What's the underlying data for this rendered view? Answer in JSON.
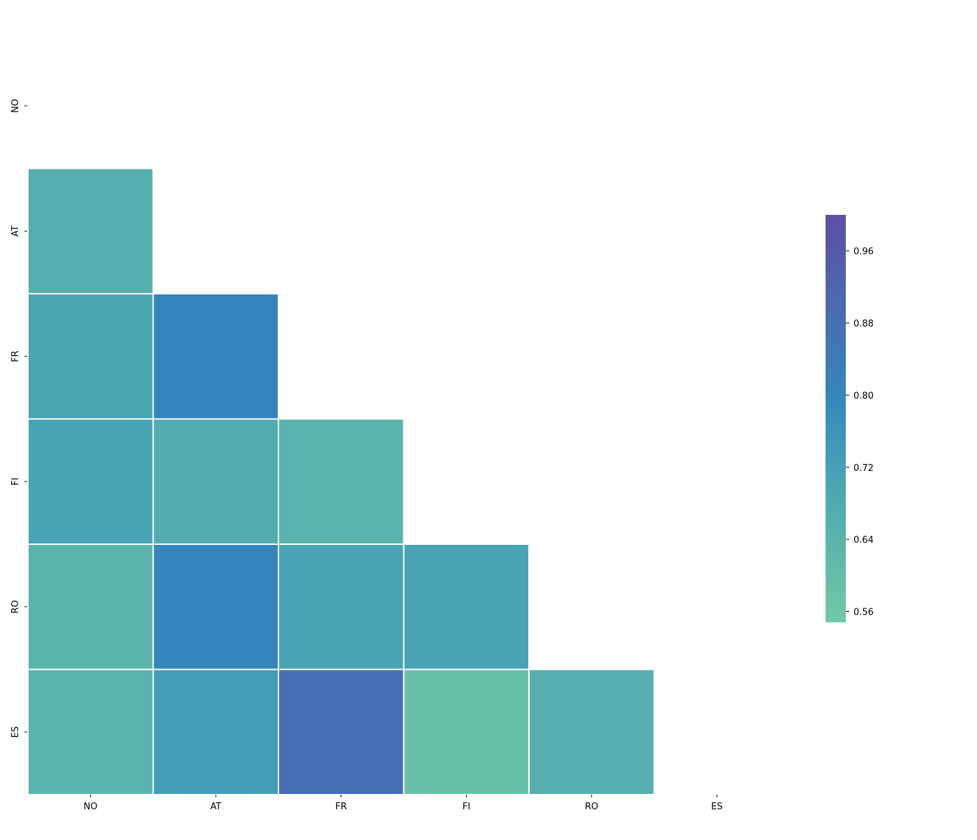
{
  "chart_data": {
    "type": "heatmap",
    "title": "",
    "xlabel": "",
    "ylabel": "",
    "x_labels": [
      "NO",
      "AT",
      "FR",
      "FI",
      "RO",
      "ES"
    ],
    "y_labels": [
      "NO",
      "AT",
      "FR",
      "FI",
      "RO",
      "ES"
    ],
    "mask": "lower-triangle-only",
    "cells": [
      {
        "row": "AT",
        "col": "NO",
        "value": 0.66
      },
      {
        "row": "FR",
        "col": "NO",
        "value": 0.7
      },
      {
        "row": "FR",
        "col": "AT",
        "value": 0.8
      },
      {
        "row": "FI",
        "col": "NO",
        "value": 0.71
      },
      {
        "row": "FI",
        "col": "AT",
        "value": 0.67
      },
      {
        "row": "FI",
        "col": "FR",
        "value": 0.645
      },
      {
        "row": "RO",
        "col": "NO",
        "value": 0.64
      },
      {
        "row": "RO",
        "col": "AT",
        "value": 0.8
      },
      {
        "row": "RO",
        "col": "FR",
        "value": 0.705
      },
      {
        "row": "RO",
        "col": "FI",
        "value": 0.71
      },
      {
        "row": "ES",
        "col": "NO",
        "value": 0.645
      },
      {
        "row": "ES",
        "col": "AT",
        "value": 0.73
      },
      {
        "row": "ES",
        "col": "FR",
        "value": 0.88
      },
      {
        "row": "ES",
        "col": "FI",
        "value": 0.58
      },
      {
        "row": "ES",
        "col": "RO",
        "value": 0.66
      }
    ],
    "colorbar": {
      "min": 0.548,
      "max": 1.0,
      "ticks": [
        "0.56",
        "0.64",
        "0.72",
        "0.80",
        "0.88",
        "0.96"
      ],
      "color_stops": [
        {
          "v": 0.548,
          "color": "#72c8a7"
        },
        {
          "v": 0.64,
          "color": "#5bb4ab"
        },
        {
          "v": 0.72,
          "color": "#46a0b6"
        },
        {
          "v": 0.8,
          "color": "#3585bc"
        },
        {
          "v": 0.88,
          "color": "#4670b4"
        },
        {
          "v": 1.0,
          "color": "#5e4ea4"
        }
      ]
    },
    "grid": false,
    "cell_border_color": "#ffffff"
  }
}
